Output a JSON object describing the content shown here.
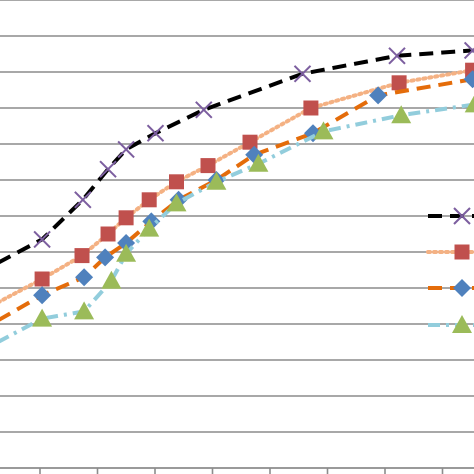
{
  "chart_data": {
    "type": "line",
    "title": "",
    "xlabel": "",
    "ylabel": "",
    "grid": true,
    "legend_placement": "right",
    "x": [
      0,
      1,
      2,
      3,
      4,
      5,
      6,
      7,
      8,
      9,
      10,
      11,
      12
    ],
    "ylim": [
      0,
      13
    ],
    "series": [
      {
        "name": "",
        "color": "#000000",
        "line_style": "dashed",
        "marker": "x",
        "marker_color": "#7c5e9f",
        "x": [
          0,
          1.05,
          2.02,
          2.62,
          3.05,
          3.75,
          4.9,
          7.25,
          9.5,
          11.3
        ],
        "values": [
          5.7,
          6.35,
          7.45,
          8.3,
          8.85,
          9.3,
          9.95,
          10.95,
          11.45,
          11.6
        ]
      },
      {
        "name": "",
        "color": "#f4b183",
        "line_style": "dotted",
        "marker": "square",
        "marker_color": "#c0504d",
        "x": [
          0,
          1.05,
          2.0,
          2.62,
          3.05,
          3.6,
          4.25,
          5.0,
          6.0,
          7.45,
          9.55,
          11.3
        ],
        "values": [
          4.6,
          5.25,
          5.9,
          6.5,
          6.95,
          7.45,
          7.95,
          8.4,
          9.05,
          10.0,
          10.7,
          11.05
        ]
      },
      {
        "name": "",
        "color": "#e46c0a",
        "line_style": "dashed",
        "marker": "diamond",
        "marker_color": "#4f81bd",
        "x": [
          0,
          1.05,
          2.05,
          2.55,
          3.05,
          3.65,
          4.3,
          5.2,
          6.1,
          7.5,
          9.05,
          11.3
        ],
        "values": [
          4.1,
          4.8,
          5.3,
          5.85,
          6.25,
          6.85,
          7.45,
          8.0,
          8.7,
          9.3,
          10.35,
          10.8
        ]
      },
      {
        "name": "",
        "color": "#92cddc",
        "line_style": "dash-dot",
        "marker": "triangle",
        "marker_color": "#9bbb59",
        "x": [
          0,
          1.05,
          2.05,
          2.7,
          3.05,
          3.6,
          4.25,
          5.2,
          6.2,
          7.75,
          9.6,
          11.35
        ],
        "values": [
          3.5,
          4.15,
          4.35,
          5.2,
          5.95,
          6.65,
          7.35,
          7.95,
          8.45,
          9.35,
          9.8,
          10.1
        ]
      }
    ]
  }
}
